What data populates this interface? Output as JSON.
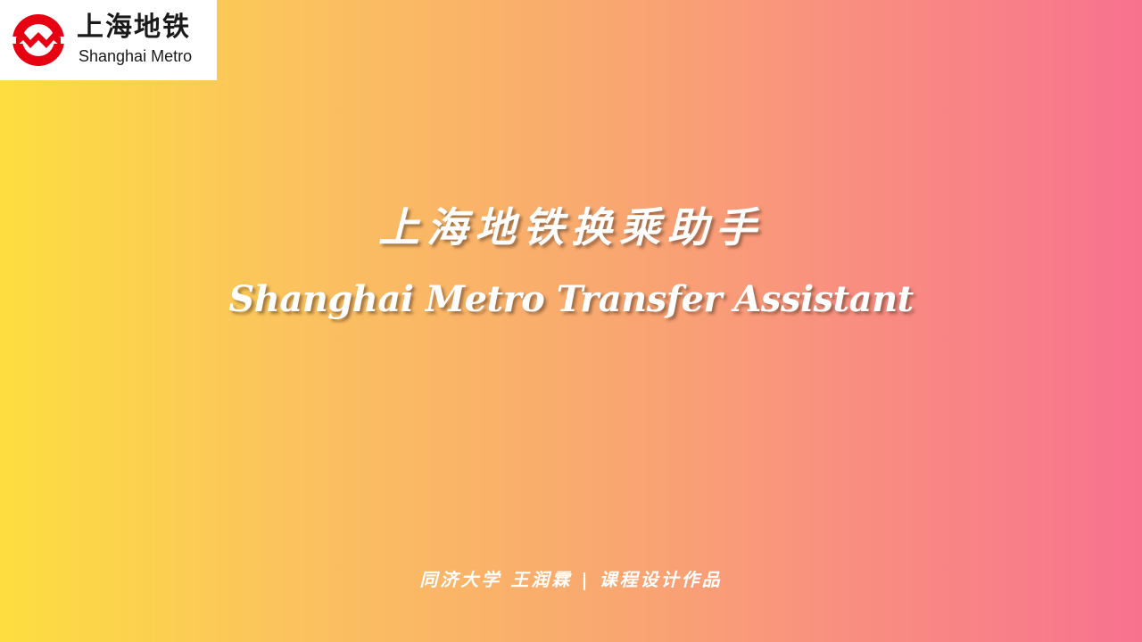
{
  "logo": {
    "icon": "shanghai-metro-logo-icon",
    "brand_color": "#e60012",
    "name_cn": "上海地铁",
    "name_en": "Shanghai Metro"
  },
  "title": {
    "cn": "上海地铁换乘助手",
    "en": "Shanghai Metro Transfer Assistant"
  },
  "footer": {
    "text": "同济大学 王润霖 | 课程设计作品"
  },
  "background": {
    "gradient_start": "#fdde40",
    "gradient_end": "#f8728f"
  }
}
